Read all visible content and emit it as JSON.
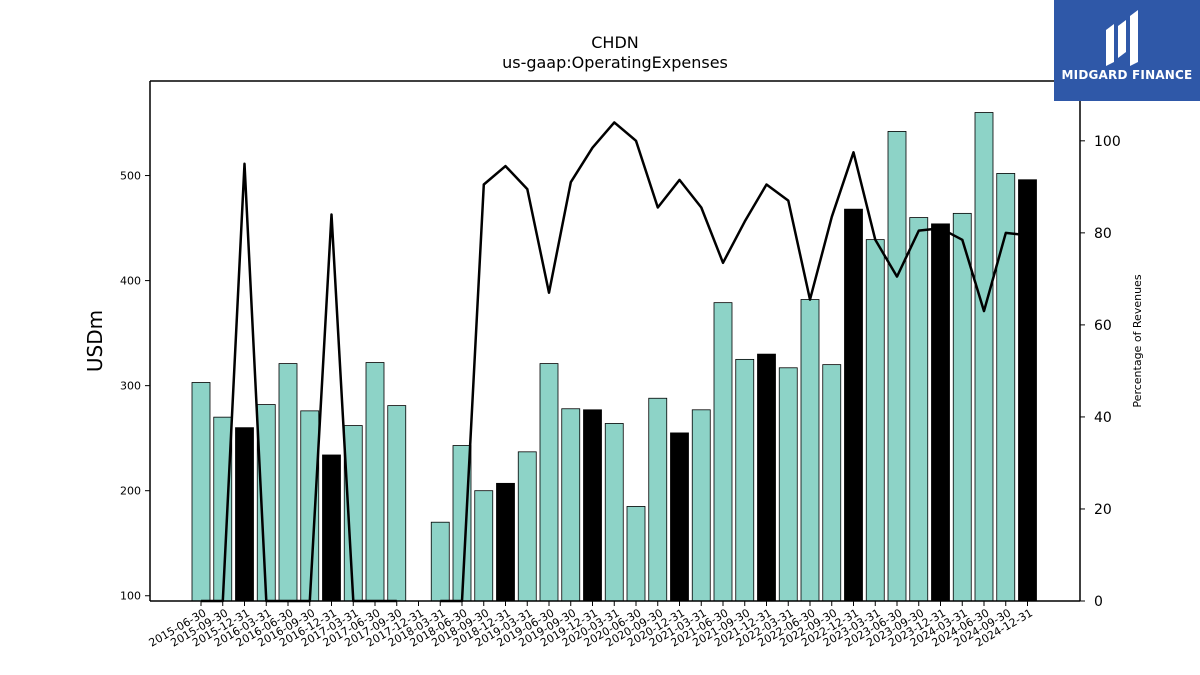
{
  "brand": {
    "name": "MIDGARD FINANCE",
    "bg_color": "#2f58a8"
  },
  "chart_data": {
    "type": "bar",
    "title": "CHDN",
    "subtitle": "us-gaap:OperatingExpenses",
    "ylabel": "USDm",
    "y2label": "Percentage of Revenues",
    "ylim": [
      95,
      590
    ],
    "y2lim": [
      0,
      113
    ],
    "yticks": [
      100,
      200,
      300,
      400,
      500
    ],
    "y2ticks": [
      0,
      20,
      40,
      60,
      80,
      100
    ],
    "bar_color_default": "#8dd3c7",
    "bar_color_highlight": "#000000",
    "line_color": "#000000",
    "categories": [
      "2015-06-30",
      "2015-09-30",
      "2015-12-31",
      "2016-03-31",
      "2016-06-30",
      "2016-09-30",
      "2016-12-31",
      "2017-03-31",
      "2017-06-30",
      "2017-09-30",
      "2017-12-31",
      "2018-03-31",
      "2018-06-30",
      "2018-09-30",
      "2018-12-31",
      "2019-03-31",
      "2019-06-30",
      "2019-09-30",
      "2019-12-31",
      "2020-03-31",
      "2020-06-30",
      "2020-09-30",
      "2020-12-31",
      "2021-03-31",
      "2021-06-30",
      "2021-09-30",
      "2021-12-31",
      "2022-03-31",
      "2022-06-30",
      "2022-09-30",
      "2022-12-31",
      "2023-03-31",
      "2023-06-30",
      "2023-09-30",
      "2023-12-31",
      "2024-03-31",
      "2024-06-30",
      "2024-09-30",
      "2024-12-31"
    ],
    "series": [
      {
        "kind": "bar",
        "values": [
          303,
          270,
          260,
          282,
          321,
          276,
          234,
          262,
          322,
          281,
          null,
          170,
          243,
          200,
          207,
          237,
          321,
          278,
          277,
          264,
          185,
          288,
          255,
          277,
          379,
          325,
          330,
          317,
          382,
          320,
          468,
          439,
          542,
          460,
          454,
          464,
          560,
          502,
          496
        ],
        "highlight": [
          false,
          false,
          true,
          false,
          false,
          false,
          true,
          false,
          false,
          false,
          false,
          false,
          false,
          false,
          true,
          false,
          false,
          false,
          true,
          false,
          false,
          false,
          true,
          false,
          false,
          false,
          true,
          false,
          false,
          false,
          true,
          false,
          false,
          false,
          true,
          false,
          false,
          false,
          true
        ]
      },
      {
        "kind": "line",
        "axis": "right",
        "values": [
          0,
          0,
          95,
          0,
          0,
          0,
          84,
          0,
          0,
          0,
          null,
          0,
          0,
          90.5,
          94.5,
          89.5,
          67,
          91,
          98.5,
          104,
          100,
          85.5,
          91.5,
          85.5,
          73.5,
          82.5,
          90.5,
          87,
          65.5,
          83.5,
          97.5,
          78.5,
          70.5,
          80.5,
          81,
          78.5,
          63,
          80,
          79.5
        ]
      }
    ]
  }
}
